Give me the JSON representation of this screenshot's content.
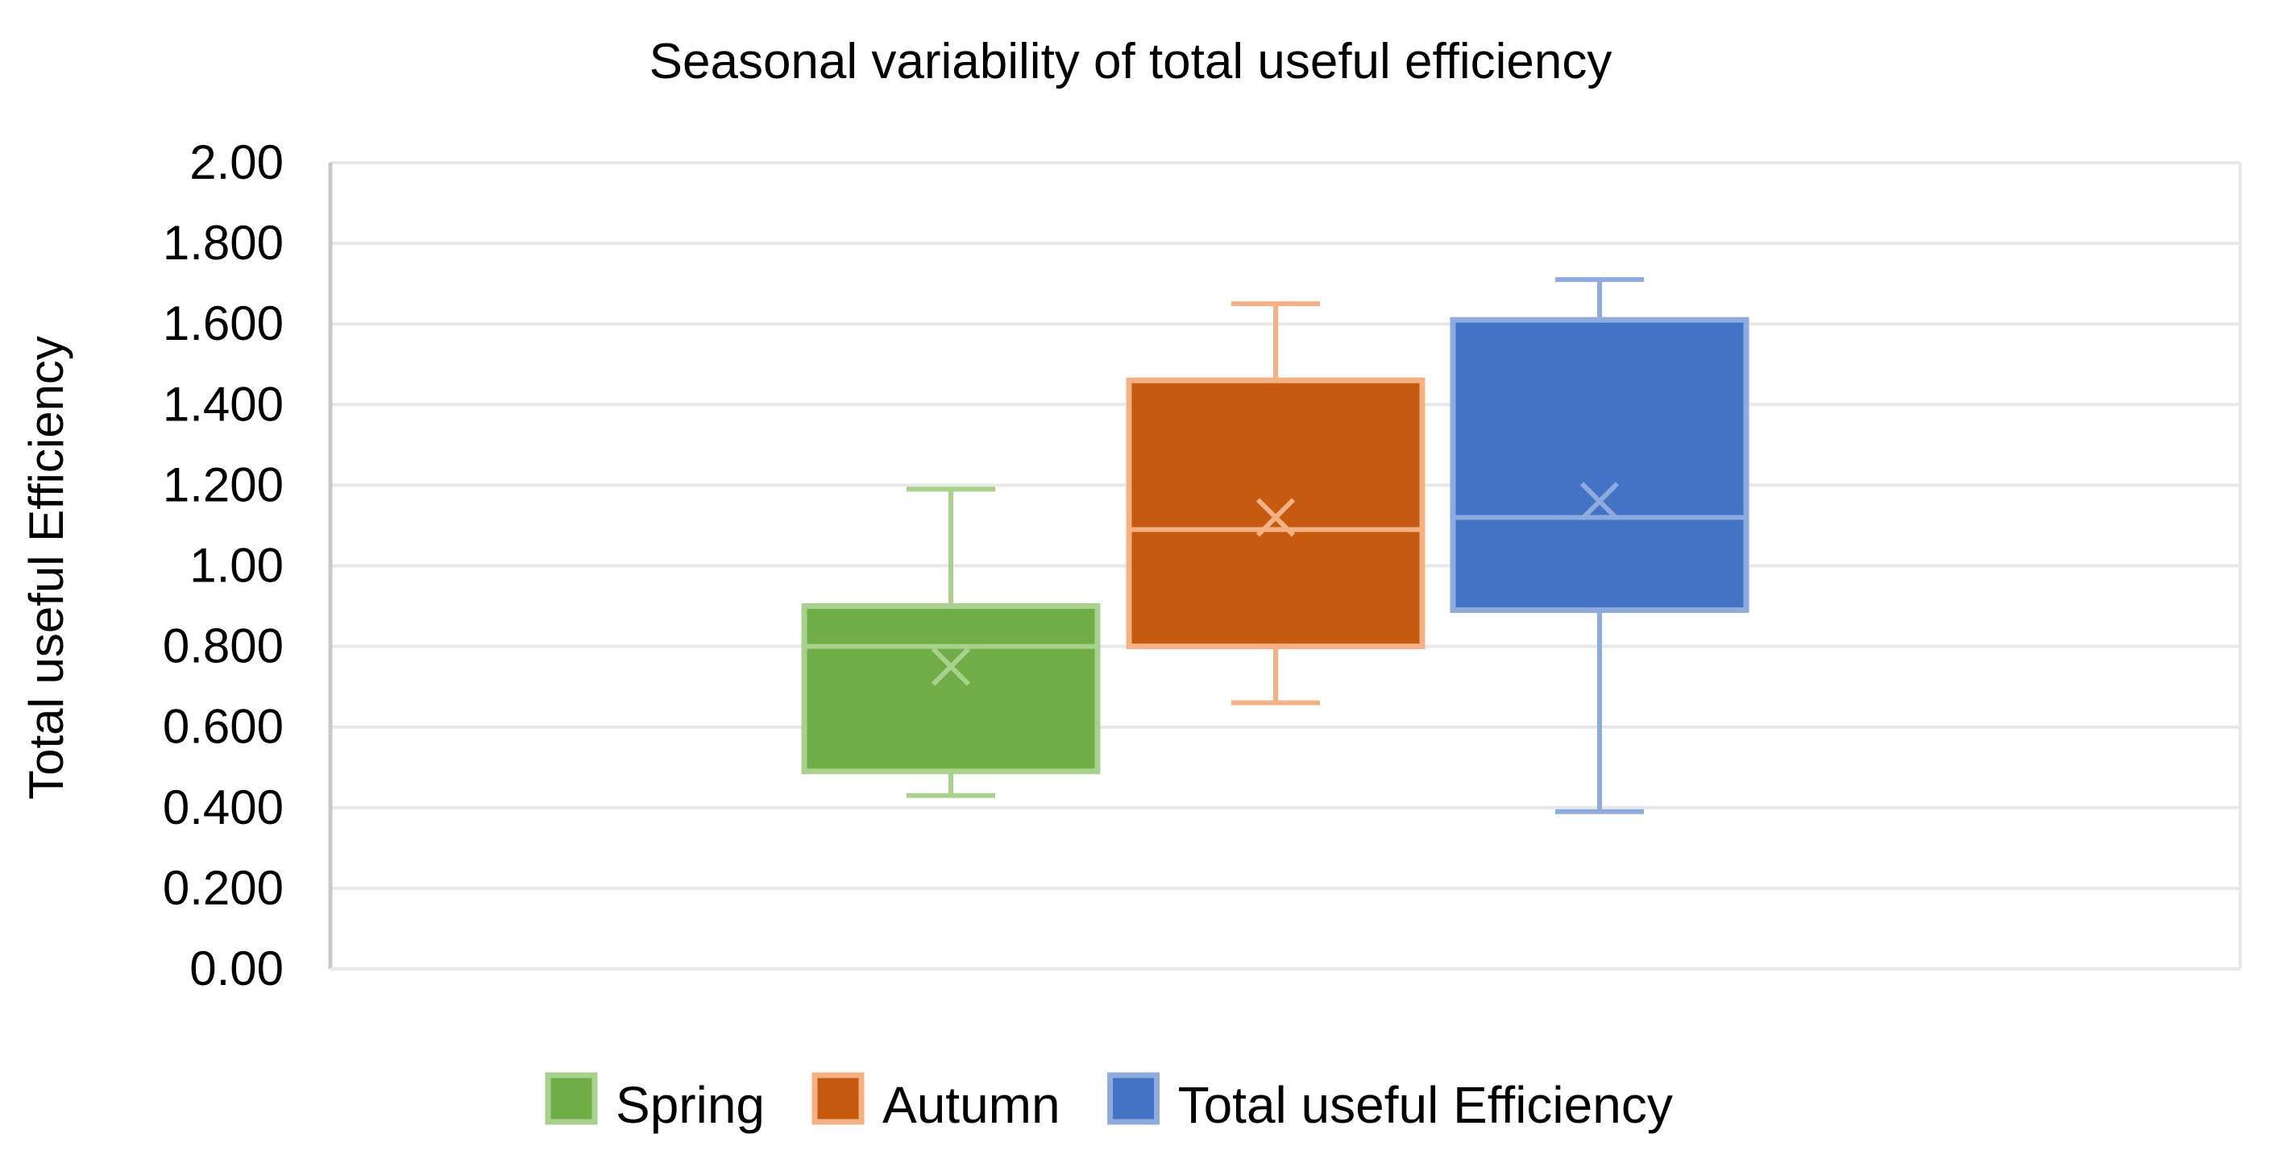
{
  "chart_data": {
    "type": "boxplot",
    "title": "Seasonal variability of total useful efficiency",
    "xlabel": "",
    "ylabel": "Total useful Efficiency",
    "ylim": [
      0,
      2.0
    ],
    "y_ticks": [
      "0.00",
      "0.200",
      "0.400",
      "0.600",
      "0.800",
      "1.00",
      "1.200",
      "1.400",
      "1.600",
      "1.800",
      "2.00"
    ],
    "grid": true,
    "legend_position": "bottom",
    "series": [
      {
        "name": "Spring",
        "fill": "#70AD47",
        "edge": "#A9D18E",
        "min": 0.43,
        "q1": 0.49,
        "median": 0.8,
        "q3": 0.9,
        "max": 1.19,
        "mean": 0.75
      },
      {
        "name": "Autumn",
        "fill": "#C55A11",
        "edge": "#F4B183",
        "min": 0.66,
        "q1": 0.8,
        "median": 1.09,
        "q3": 1.46,
        "max": 1.65,
        "mean": 1.12
      },
      {
        "name": "Total useful Efficiency",
        "fill": "#4472C4",
        "edge": "#8FAADC",
        "min": 0.39,
        "q1": 0.89,
        "median": 1.12,
        "q3": 1.61,
        "max": 1.71,
        "mean": 1.16
      }
    ]
  },
  "colors": {
    "gridline": "#E8E8E8",
    "axis": "#C8C8C8"
  }
}
